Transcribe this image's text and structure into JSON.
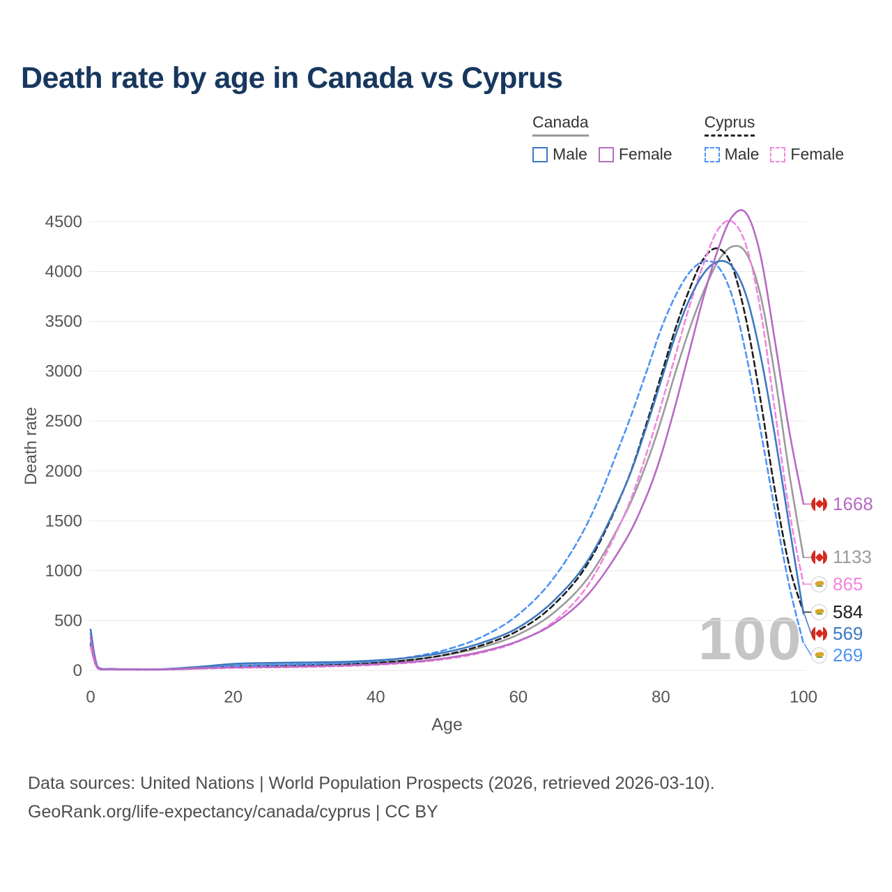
{
  "title": "Death rate by age in Canada vs Cyprus",
  "watermark": "100",
  "legend": {
    "groups": [
      {
        "country": "Canada",
        "style": "solid",
        "underline_color": "#999999",
        "items": [
          {
            "label": "Male",
            "color": "#3c78c0",
            "dash": false
          },
          {
            "label": "Female",
            "color": "#b76ac4",
            "dash": false
          }
        ]
      },
      {
        "country": "Cyprus",
        "style": "dashed",
        "underline_color": "#222222",
        "items": [
          {
            "label": "Male",
            "color": "#4e93f6",
            "dash": true
          },
          {
            "label": "Female",
            "color": "#f186e0",
            "dash": true
          }
        ]
      }
    ]
  },
  "chart_data": {
    "type": "line",
    "title": "Death rate by age in Canada vs Cyprus",
    "xlabel": "Age",
    "ylabel": "Death rate",
    "xlim": [
      0,
      100
    ],
    "ylim": [
      0,
      4500
    ],
    "x_ticks": [
      0,
      20,
      40,
      60,
      80,
      100
    ],
    "y_ticks": [
      0,
      500,
      1000,
      1500,
      2000,
      2500,
      3000,
      3500,
      4000,
      4500
    ],
    "grid": "horizontal",
    "legend_position": "top-right",
    "x": [
      0,
      1,
      3,
      5,
      10,
      15,
      20,
      25,
      30,
      35,
      40,
      45,
      50,
      55,
      60,
      65,
      70,
      75,
      78,
      80,
      82,
      84,
      86,
      88,
      90,
      92,
      94,
      96,
      98,
      100
    ],
    "series": [
      {
        "key": "canada-both",
        "name": "Canada",
        "country": "Canada",
        "sex": "Both",
        "color": "#9b9b9b",
        "dash": false,
        "flag": "canada",
        "values": [
          370,
          32,
          13,
          11,
          11,
          28,
          48,
          55,
          60,
          66,
          80,
          107,
          155,
          235,
          360,
          580,
          950,
          1570,
          2080,
          2500,
          2980,
          3420,
          3800,
          4100,
          4250,
          4180,
          3750,
          2950,
          1980,
          1133
        ]
      },
      {
        "key": "cyprus-both",
        "name": "Cyprus",
        "country": "Cyprus",
        "sex": "Both",
        "color": "#1c1c1c",
        "dash": true,
        "flag": "cyprus",
        "values": [
          260,
          20,
          10,
          8,
          8,
          20,
          38,
          45,
          50,
          60,
          75,
          105,
          160,
          255,
          400,
          660,
          1100,
          1850,
          2480,
          2950,
          3420,
          3820,
          4130,
          4230,
          4050,
          3500,
          2700,
          1800,
          1050,
          584
        ]
      },
      {
        "key": "cyprus-male",
        "name": "Cyprus Male",
        "country": "Cyprus",
        "sex": "Male",
        "color": "#4e93f6",
        "dash": true,
        "flag": "cyprus",
        "values": [
          280,
          22,
          10,
          9,
          9,
          25,
          45,
          55,
          62,
          72,
          92,
          135,
          210,
          340,
          560,
          930,
          1520,
          2400,
          3000,
          3420,
          3750,
          3990,
          4100,
          4050,
          3750,
          3150,
          2400,
          1600,
          850,
          269
        ]
      },
      {
        "key": "cyprus-female",
        "name": "Cyprus Female",
        "country": "Cyprus",
        "sex": "Female",
        "color": "#f186e0",
        "dash": true,
        "flag": "cyprus",
        "values": [
          230,
          18,
          8,
          7,
          7,
          16,
          25,
          30,
          34,
          42,
          55,
          78,
          115,
          180,
          290,
          490,
          880,
          1580,
          2180,
          2650,
          3150,
          3650,
          4080,
          4420,
          4500,
          4250,
          3600,
          2600,
          1600,
          865
        ]
      },
      {
        "key": "canada-male",
        "name": "Canada Male",
        "country": "Canada",
        "sex": "Male",
        "color": "#3c78c0",
        "dash": false,
        "flag": "canada",
        "values": [
          410,
          35,
          15,
          12,
          12,
          35,
          65,
          75,
          80,
          85,
          100,
          130,
          185,
          280,
          430,
          700,
          1130,
          1850,
          2450,
          2900,
          3350,
          3720,
          3980,
          4100,
          4050,
          3750,
          3150,
          2350,
          1450,
          569
        ]
      },
      {
        "key": "canada-female",
        "name": "Canada Female",
        "country": "Canada",
        "sex": "Female",
        "color": "#b76ac4",
        "dash": false,
        "flag": "canada",
        "values": [
          330,
          28,
          12,
          10,
          10,
          22,
          30,
          35,
          40,
          48,
          62,
          85,
          125,
          190,
          295,
          470,
          780,
          1300,
          1750,
          2150,
          2650,
          3200,
          3750,
          4220,
          4550,
          4580,
          4150,
          3300,
          2400,
          1668
        ]
      }
    ]
  },
  "footer": {
    "line1": "Data sources: United Nations | World Population Prospects (2026, retrieved 2026-03-10).",
    "line2": "GeoRank.org/life-expectancy/canada/cyprus | CC BY"
  }
}
